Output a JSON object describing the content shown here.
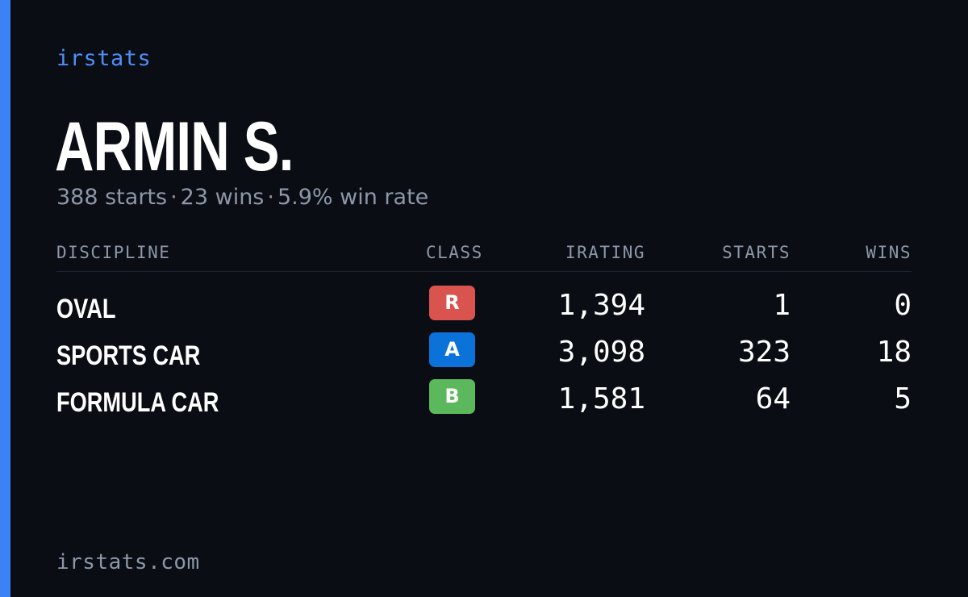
{
  "brand": "irstats",
  "driver": {
    "name": "ARMIN S.",
    "summary": {
      "starts": "388 starts",
      "wins": "23 wins",
      "win_rate": "5.9% win rate",
      "separator": "·"
    }
  },
  "table": {
    "headers": {
      "discipline": "DISCIPLINE",
      "class": "CLASS",
      "irating": "IRATING",
      "starts": "STARTS",
      "wins": "WINS"
    },
    "rows": [
      {
        "discipline": "OVAL",
        "class": "R",
        "class_color": "#d9534f",
        "irating": "1,394",
        "starts": "1",
        "wins": "0"
      },
      {
        "discipline": "SPORTS CAR",
        "class": "A",
        "class_color": "#0b72d9",
        "irating": "3,098",
        "starts": "323",
        "wins": "18"
      },
      {
        "discipline": "FORMULA CAR",
        "class": "B",
        "class_color": "#5cb85c",
        "irating": "1,581",
        "starts": "64",
        "wins": "5"
      }
    ]
  },
  "footer": {
    "url": "irstats.com"
  },
  "colors": {
    "background": "#0a0d14",
    "accent": "#3b82f6",
    "brand_text": "#4f8ef7",
    "muted_text": "#8d97a8"
  }
}
